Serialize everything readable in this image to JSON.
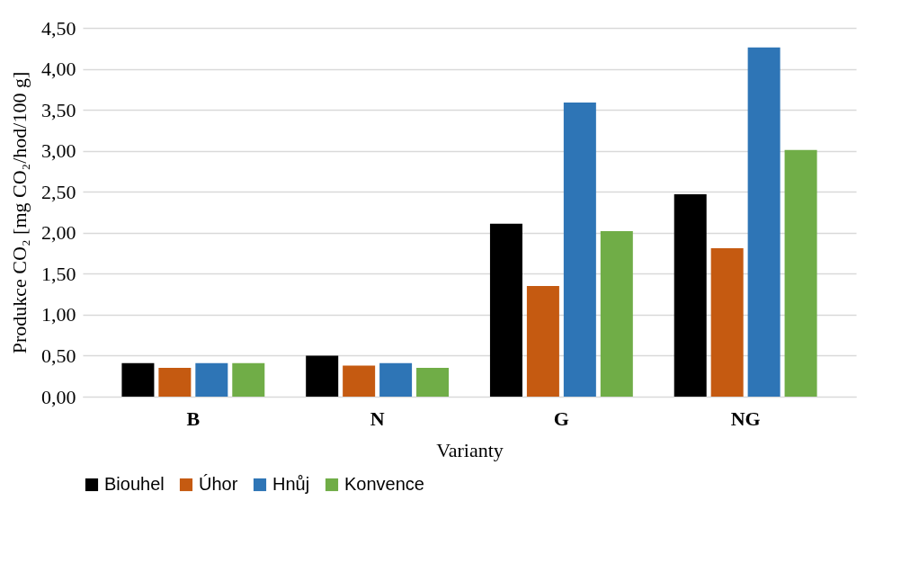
{
  "chart_data": {
    "type": "bar",
    "xlabel": "Varianty",
    "ylabel": "Produkce CO₂ [mg CO₂/hod/100 g]",
    "categories": [
      "B",
      "N",
      "G",
      "NG"
    ],
    "series": [
      {
        "name": "Biouhel",
        "color": "#000000",
        "values": [
          0.41,
          0.5,
          2.11,
          2.47
        ]
      },
      {
        "name": "Úhor",
        "color": "#c55a11",
        "values": [
          0.35,
          0.38,
          1.35,
          1.81
        ]
      },
      {
        "name": "Hnůj",
        "color": "#2e75b6",
        "values": [
          0.41,
          0.41,
          3.59,
          4.26
        ]
      },
      {
        "name": "Konvence",
        "color": "#70ad47",
        "values": [
          0.41,
          0.35,
          2.02,
          3.01
        ]
      }
    ],
    "ylim": [
      0,
      4.5
    ],
    "yticks": [
      {
        "value": 0,
        "label": "0,00"
      },
      {
        "value": 0.5,
        "label": "0,50"
      },
      {
        "value": 1,
        "label": "1,00"
      },
      {
        "value": 1.5,
        "label": "1,50"
      },
      {
        "value": 2,
        "label": "2,00"
      },
      {
        "value": 2.5,
        "label": "2,50"
      },
      {
        "value": 3,
        "label": "3,00"
      },
      {
        "value": 3.5,
        "label": "3,50"
      },
      {
        "value": 4,
        "label": "4,00"
      },
      {
        "value": 4.5,
        "label": "4,50"
      }
    ],
    "grid": "y",
    "legend": "bottom"
  }
}
